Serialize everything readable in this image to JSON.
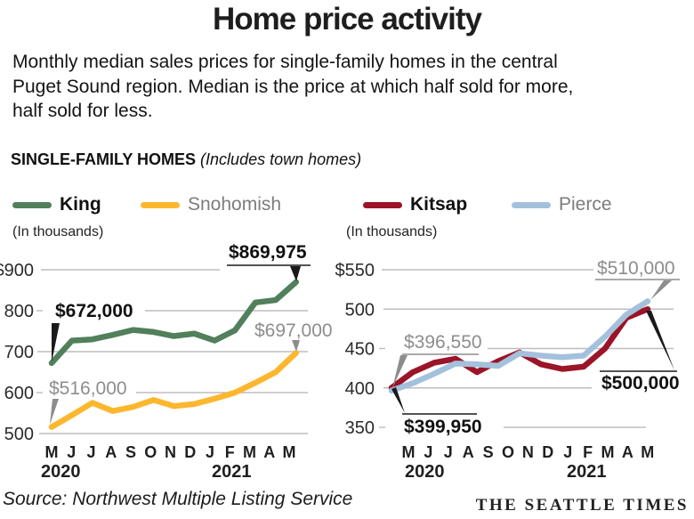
{
  "page": {
    "title": "Home price activity",
    "subtitle": "Monthly median sales prices for single-family homes in the central Puget Sound region. Median is the price at which half sold for more, half sold for less.",
    "section_heading": "SINGLE-FAMILY HOMES",
    "section_note": "(Includes town homes)",
    "source": "Source: Northwest Multiple Listing Service",
    "credit": "THE SEATTLE TIMES"
  },
  "legend": [
    {
      "label": "King",
      "color": "#527f5c",
      "emphasis": true
    },
    {
      "label": "Snohomish",
      "color": "#fcb72f",
      "emphasis": false
    },
    {
      "label": "Kitsap",
      "color": "#9b1427",
      "emphasis": true
    },
    {
      "label": "Pierce",
      "color": "#a4c1dc",
      "emphasis": false
    }
  ],
  "chart_data": [
    {
      "type": "line",
      "title_note": "(In thousands)",
      "units": "thousands of dollars",
      "categories": [
        "M",
        "J",
        "J",
        "A",
        "S",
        "O",
        "N",
        "D",
        "J",
        "F",
        "M",
        "A",
        "M"
      ],
      "years": [
        "2020",
        "2021"
      ],
      "ylim": [
        500,
        900
      ],
      "yticks": [
        "$900",
        "800",
        "700",
        "600",
        "500"
      ],
      "grid": true,
      "legend_position": "top",
      "series": [
        {
          "name": "King",
          "color": "#527f5c",
          "values": [
            672,
            727,
            730,
            741,
            753,
            748,
            738,
            744,
            727,
            752,
            820,
            826,
            869.975
          ]
        },
        {
          "name": "Snohomish",
          "color": "#fcb72f",
          "values": [
            516,
            545,
            575,
            555,
            565,
            582,
            567,
            572,
            585,
            600,
            624,
            650,
            697
          ]
        }
      ],
      "annotations": [
        {
          "id": "king_start",
          "text": "$672,000",
          "series": "King",
          "point": "May 2020",
          "tone": "dark"
        },
        {
          "id": "king_end",
          "text": "$869,975",
          "series": "King",
          "point": "May 2021",
          "tone": "dark"
        },
        {
          "id": "sno_start",
          "text": "$516,000",
          "series": "Snohomish",
          "point": "May 2020",
          "tone": "gray"
        },
        {
          "id": "sno_end",
          "text": "$697,000",
          "series": "Snohomish",
          "point": "May 2021",
          "tone": "gray"
        }
      ]
    },
    {
      "type": "line",
      "title_note": "(In thousands)",
      "units": "thousands of dollars",
      "categories": [
        "M",
        "J",
        "J",
        "A",
        "S",
        "O",
        "N",
        "D",
        "J",
        "F",
        "M",
        "A",
        "M"
      ],
      "years": [
        "2020",
        "2021"
      ],
      "ylim": [
        350,
        550
      ],
      "yticks": [
        "$550",
        "500",
        "450",
        "400",
        "350"
      ],
      "grid": true,
      "legend_position": "top",
      "series": [
        {
          "name": "Kitsap",
          "color": "#9b1427",
          "values": [
            399.95,
            420,
            432,
            437,
            420,
            434,
            445,
            430,
            424,
            427,
            450,
            489,
            500
          ]
        },
        {
          "name": "Pierce",
          "color": "#a4c1dc",
          "values": [
            396.55,
            406,
            418,
            431,
            430,
            428,
            444,
            441,
            439,
            441,
            465,
            493,
            510
          ]
        }
      ],
      "annotations": [
        {
          "id": "pierce_start",
          "text": "$396,550",
          "series": "Pierce",
          "point": "May 2020",
          "tone": "gray"
        },
        {
          "id": "pierce_end",
          "text": "$510,000",
          "series": "Pierce",
          "point": "May 2021",
          "tone": "gray"
        },
        {
          "id": "kitsap_start",
          "text": "$399,950",
          "series": "Kitsap",
          "point": "May 2020",
          "tone": "dark"
        },
        {
          "id": "kitsap_end",
          "text": "$500,000",
          "series": "Kitsap",
          "point": "May 2021",
          "tone": "dark"
        }
      ]
    }
  ]
}
